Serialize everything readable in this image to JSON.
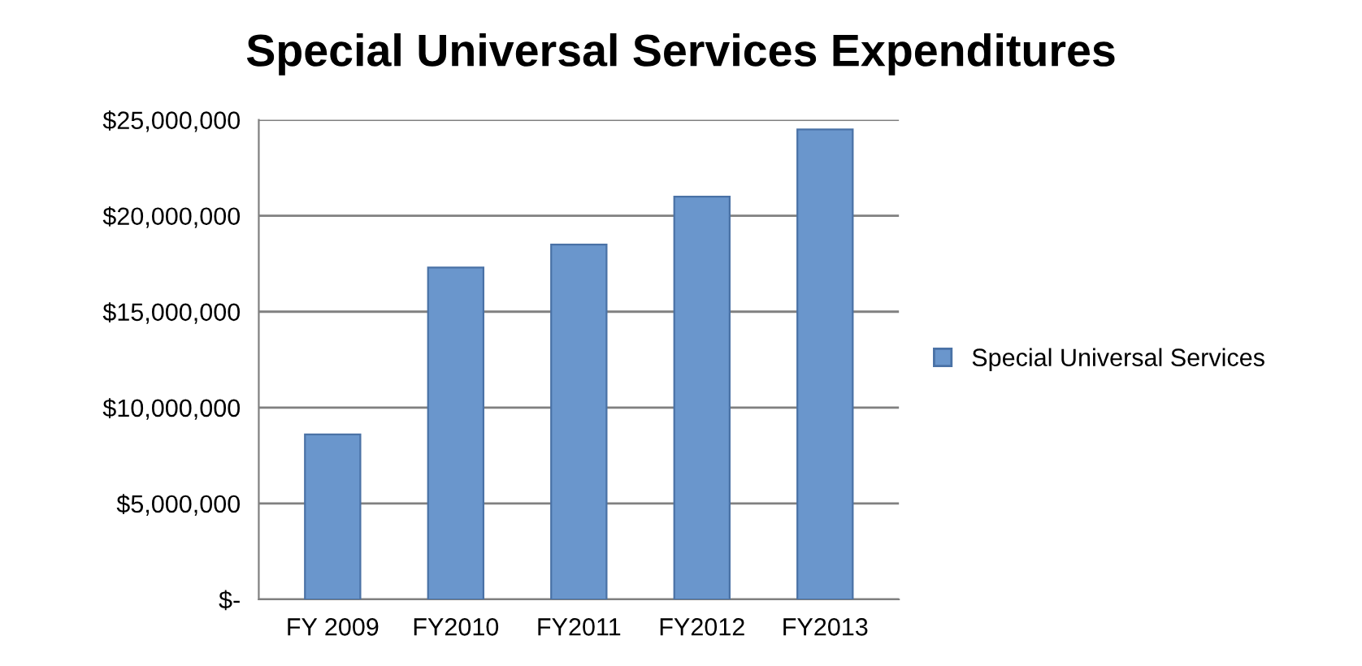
{
  "chart_data": {
    "type": "bar",
    "title": "Special Universal Services Expenditures",
    "categories": [
      "FY 2009",
      "FY2010",
      "FY2011",
      "FY2012",
      "FY2013"
    ],
    "series": [
      {
        "name": "Special Universal Services",
        "color": "#6a96cc",
        "values": [
          8600000,
          17300000,
          18500000,
          21000000,
          24500000
        ]
      }
    ],
    "ylim": [
      0,
      25000000
    ],
    "yticks": [
      {
        "value": 0,
        "label": "$-"
      },
      {
        "value": 5000000,
        "label": "$5,000,000"
      },
      {
        "value": 10000000,
        "label": "$10,000,000"
      },
      {
        "value": 15000000,
        "label": "$15,000,000"
      },
      {
        "value": 20000000,
        "label": "$20,000,000"
      },
      {
        "value": 25000000,
        "label": "$25,000,000"
      }
    ],
    "grid": "y",
    "legend": "right"
  }
}
